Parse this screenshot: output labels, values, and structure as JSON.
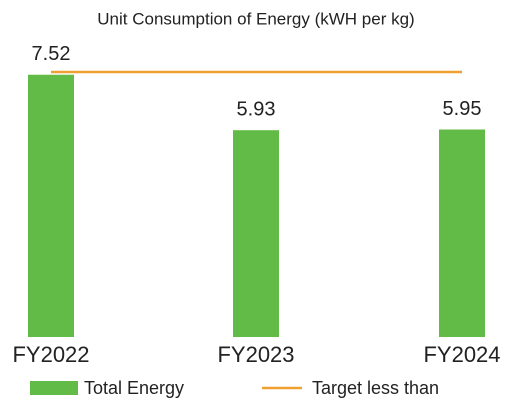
{
  "chart_data": {
    "type": "bar",
    "title": "Unit Consumption of Energy (kWH per kg)",
    "categories": [
      "FY2022",
      "FY2023",
      "FY2024"
    ],
    "series": [
      {
        "name": "Total Energy",
        "type": "bar",
        "color": "#62bb46",
        "values": [
          7.52,
          5.93,
          5.95
        ]
      },
      {
        "name": "Target less than",
        "type": "line",
        "color": "#f0a030",
        "values": [
          7.6,
          7.6,
          7.6
        ]
      }
    ],
    "ylim": [
      0,
      8
    ],
    "legend": "bottom"
  }
}
